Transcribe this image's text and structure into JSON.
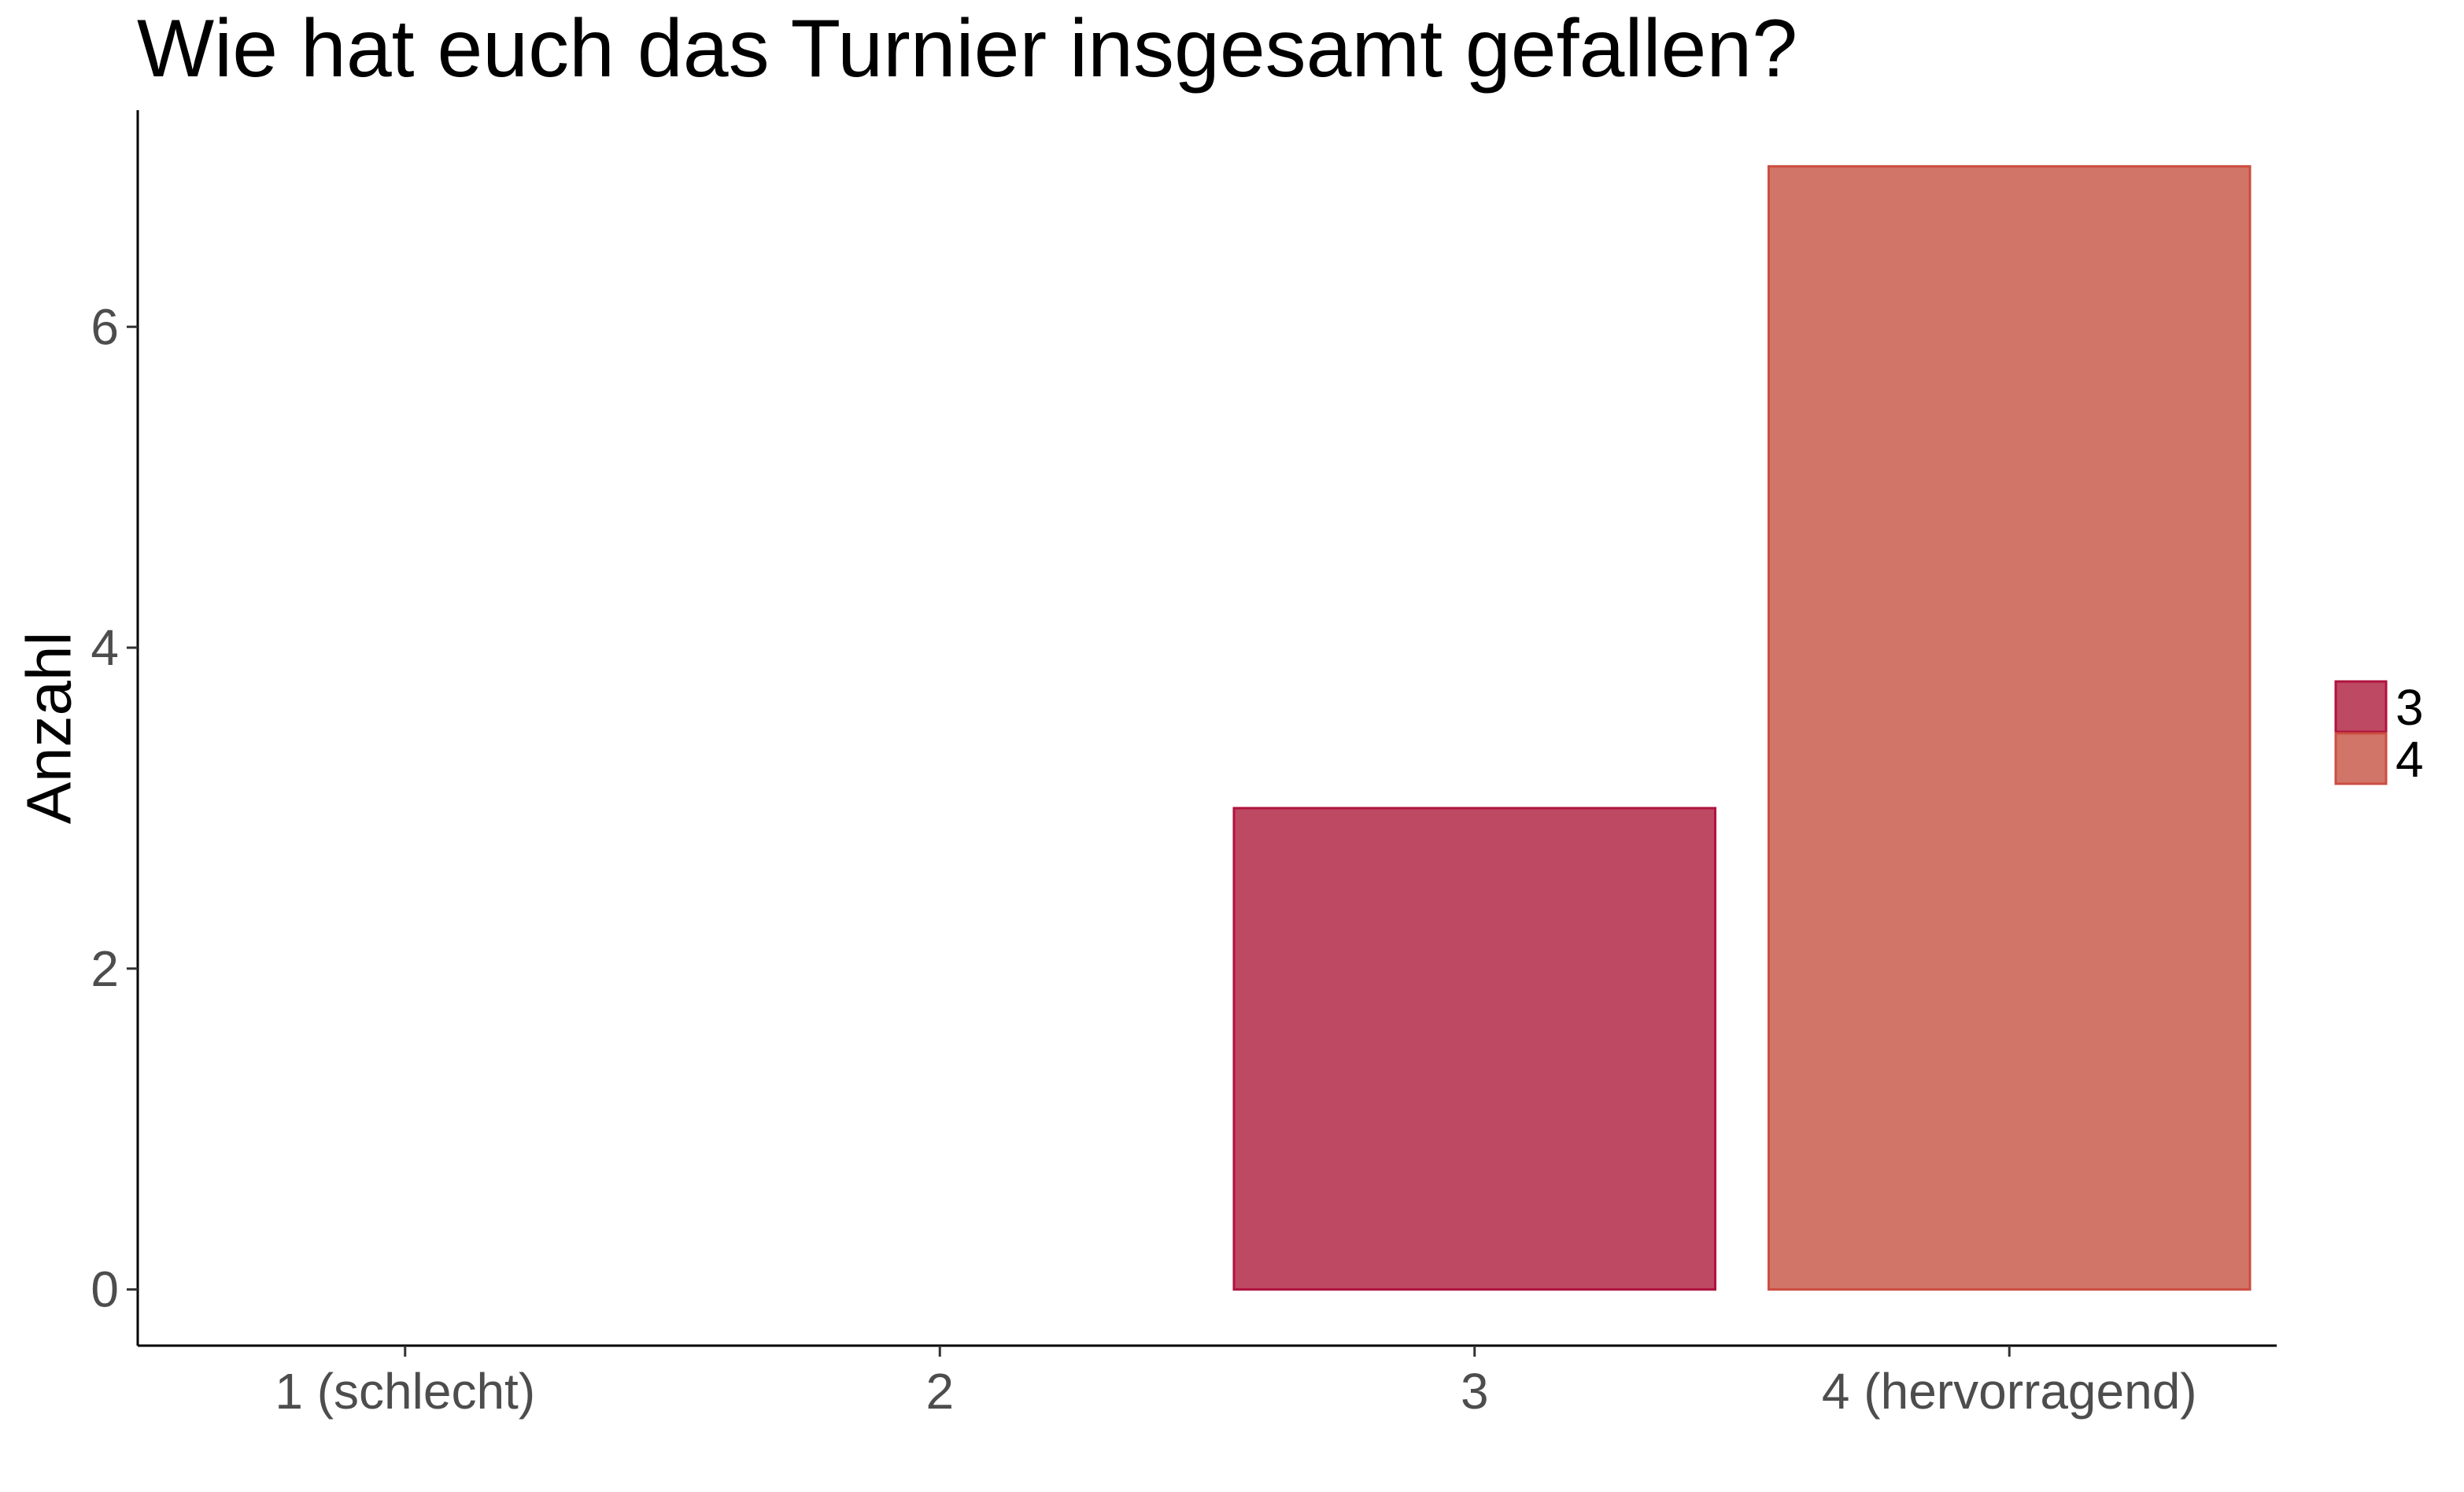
{
  "chart_data": {
    "type": "bar",
    "title": "Wie hat euch das Turnier insgesamt gefallen?",
    "xlabel": "",
    "ylabel": "Anzahl",
    "categories": [
      "1 (schlecht)",
      "2",
      "3",
      "4 (hervorragend)"
    ],
    "values": [
      0,
      0,
      3,
      7
    ],
    "bar_colors": [
      null,
      null,
      "#BD4962",
      "#D17568"
    ],
    "bar_borders": [
      null,
      null,
      "#B0133E",
      "#CC4E41"
    ],
    "ylim": [
      -0.35,
      7.35
    ],
    "yticks": [
      0,
      2,
      4,
      6
    ],
    "grid": false,
    "legend": {
      "position": "right",
      "entries": [
        {
          "label": "3",
          "color": "#BD4962",
          "border": "#B0133E"
        },
        {
          "label": "4",
          "color": "#D17568",
          "border": "#CC4E41"
        }
      ]
    }
  }
}
